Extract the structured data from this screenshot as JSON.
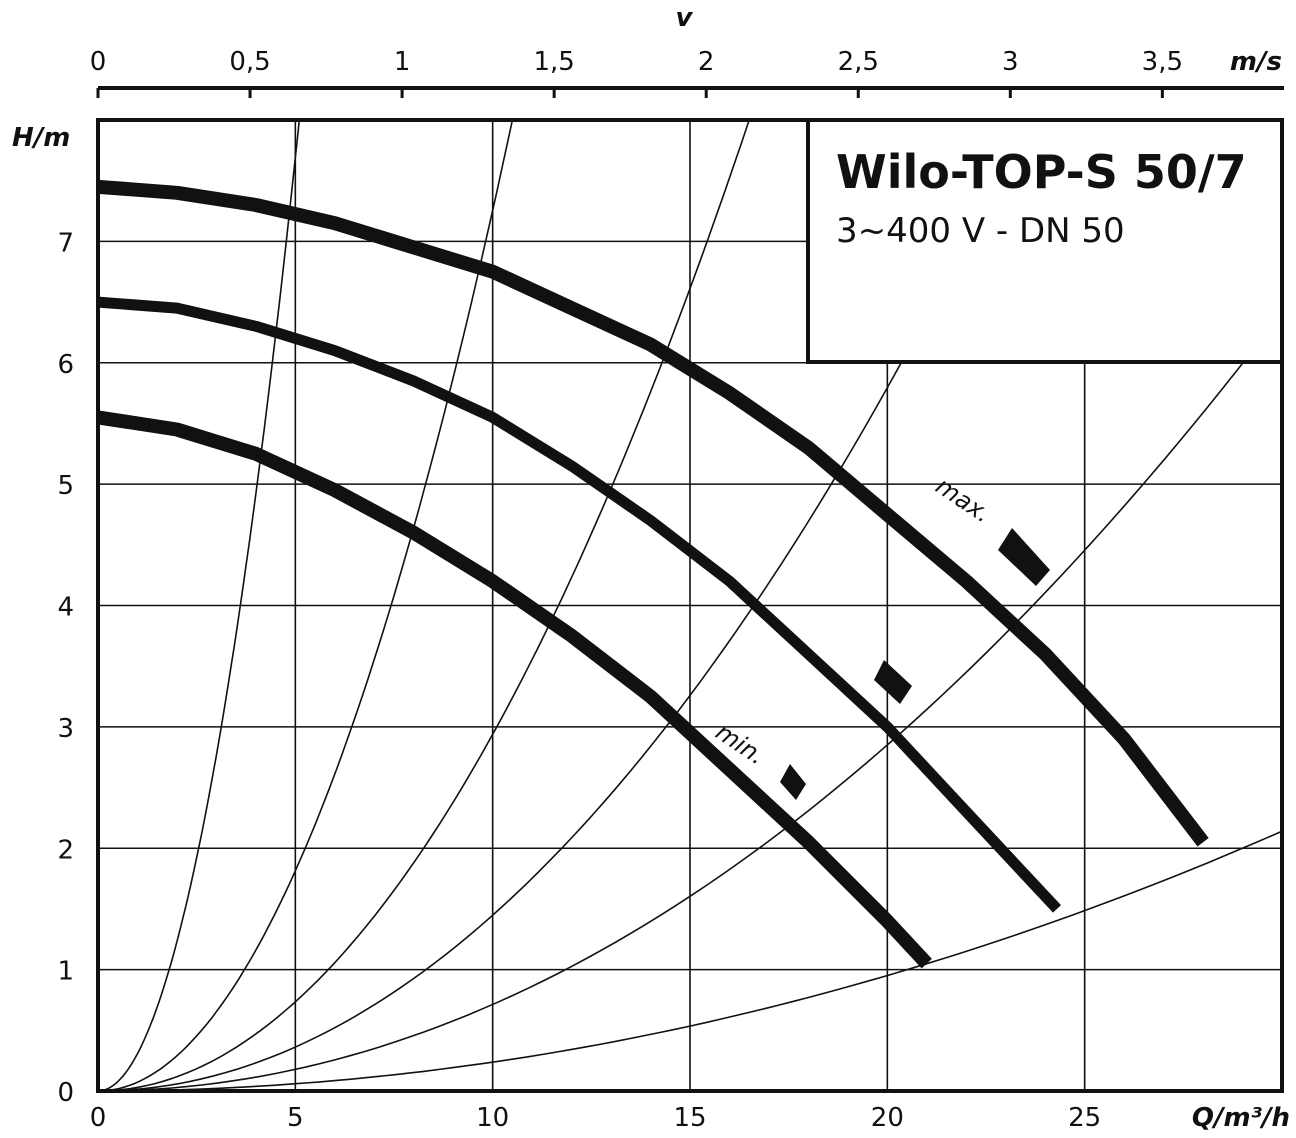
{
  "chart_data": {
    "type": "line",
    "title": "Wilo-TOP-S 50/7",
    "subtitle": "3~400 V - DN 50",
    "xlabel": "Q/m³/h",
    "ylabel": "H/m",
    "secondary_xlabel": "v",
    "secondary_xunit": "m/s",
    "xlim": [
      0,
      30
    ],
    "ylim": [
      0,
      8
    ],
    "vlim": [
      0,
      3.9
    ],
    "x_ticks": [
      0,
      5,
      10,
      15,
      20,
      25
    ],
    "y_ticks": [
      0,
      1,
      2,
      3,
      4,
      5,
      6,
      7
    ],
    "v_ticks": [
      "0",
      "0,5",
      "1",
      "1,5",
      "2",
      "2,5",
      "3",
      "3,5"
    ],
    "grid": true,
    "series": [
      {
        "name": "max.",
        "x": [
          0,
          2,
          4,
          6,
          8,
          10,
          12,
          14,
          16,
          18,
          20,
          22,
          24,
          26,
          28
        ],
        "y": [
          7.45,
          7.4,
          7.3,
          7.15,
          6.95,
          6.75,
          6.45,
          6.15,
          5.75,
          5.3,
          4.75,
          4.2,
          3.6,
          2.9,
          2.05
        ]
      },
      {
        "name": "",
        "x": [
          0,
          2,
          4,
          6,
          8,
          10,
          12,
          14,
          16,
          18,
          20,
          22,
          24.3
        ],
        "y": [
          6.5,
          6.45,
          6.3,
          6.1,
          5.85,
          5.55,
          5.15,
          4.7,
          4.2,
          3.6,
          3.0,
          2.3,
          1.5
        ]
      },
      {
        "name": "min.",
        "x": [
          0,
          2,
          4,
          6,
          8,
          10,
          12,
          14,
          16,
          18,
          20,
          21
        ],
        "y": [
          5.55,
          5.45,
          5.25,
          4.95,
          4.6,
          4.2,
          3.75,
          3.25,
          2.65,
          2.05,
          1.4,
          1.05
        ]
      }
    ],
    "system_curves": [
      {
        "x_at_top": 5.1
      },
      {
        "x_at_top": 10.5
      },
      {
        "x_at_top": 16.5
      },
      {
        "x_at_top": 23.5
      },
      {
        "x_at_top": 33.5
      },
      {
        "x_at_top": 58
      }
    ]
  }
}
